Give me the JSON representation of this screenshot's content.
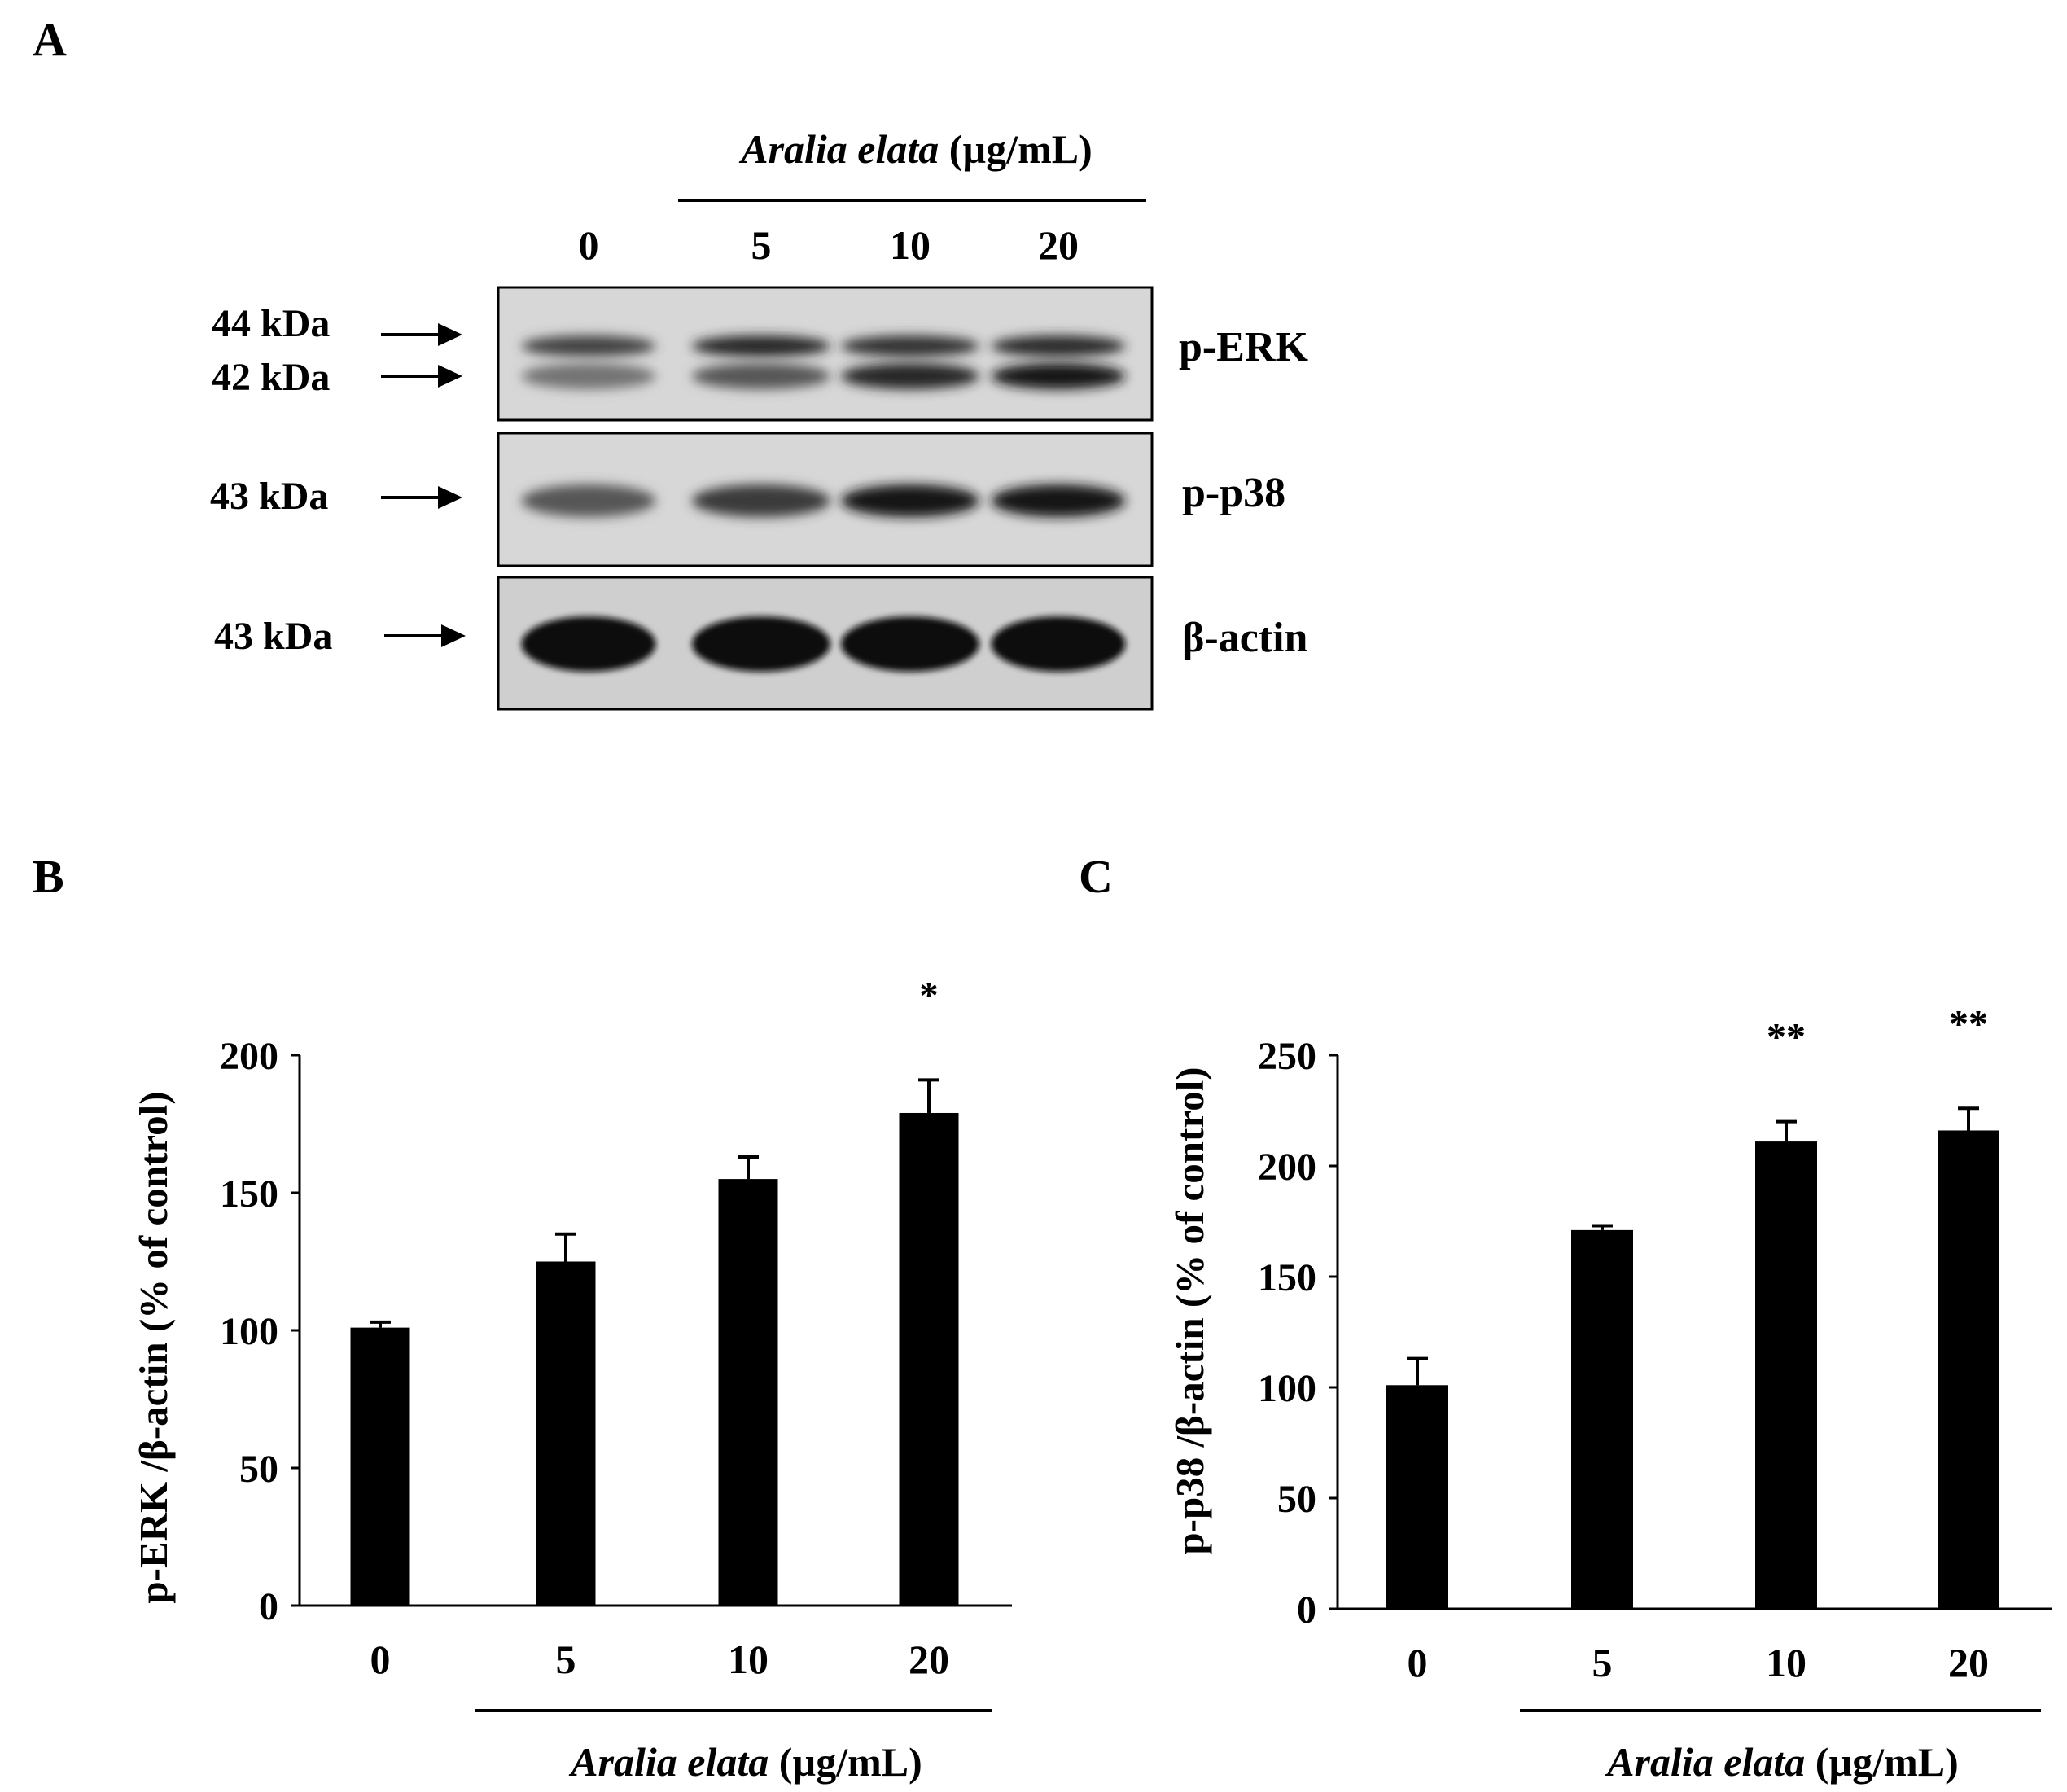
{
  "panels": {
    "A": {
      "letter": "A",
      "treatment_agent": "Aralia elata",
      "treatment_unit": " (µg/mL)",
      "lanes": [
        "0",
        "5",
        "10",
        "20"
      ],
      "blots": [
        {
          "protein": "p-ERK",
          "markers": [
            "44 kDa",
            "42 kDa"
          ],
          "upper_band_intensity": [
            0.7,
            0.85,
            0.8,
            0.82
          ],
          "lower_band_intensity": [
            0.45,
            0.6,
            0.85,
            0.95
          ]
        },
        {
          "protein": "p-p38",
          "markers": [
            "43 kDa"
          ],
          "band_intensity": [
            0.6,
            0.75,
            0.95,
            0.95
          ]
        },
        {
          "protein": "β-actin",
          "markers": [
            "43 kDa"
          ],
          "band_intensity": [
            1.0,
            1.0,
            1.0,
            1.0
          ]
        }
      ]
    }
  },
  "chart_data": [
    {
      "panel": "B",
      "type": "bar",
      "categories": [
        "0",
        "5",
        "10",
        "20"
      ],
      "values": [
        101,
        125,
        155,
        179
      ],
      "errors": [
        2,
        10,
        8,
        12
      ],
      "significance": [
        "",
        "",
        "",
        "*"
      ],
      "ylabel": "p-ERK /β-actin (% of control)",
      "xlabel_agent": "Aralia elata",
      "xlabel_unit": " (µg/mL)",
      "ylim": [
        0,
        200
      ],
      "yticks": [
        "0",
        "50",
        "100",
        "150",
        "200"
      ],
      "bar_color": "#000000"
    },
    {
      "panel": "C",
      "type": "bar",
      "categories": [
        "0",
        "5",
        "10",
        "20"
      ],
      "values": [
        101,
        171,
        211,
        216
      ],
      "errors": [
        12,
        2,
        9,
        10
      ],
      "significance": [
        "",
        "",
        "**",
        "**"
      ],
      "ylabel": "p-p38 /β-actin  (% of control)",
      "xlabel_agent": "Aralia elata",
      "xlabel_unit": " (µg/mL)",
      "ylim": [
        0,
        250
      ],
      "yticks": [
        "0",
        "50",
        "100",
        "150",
        "200",
        "250"
      ],
      "bar_color": "#000000"
    }
  ]
}
